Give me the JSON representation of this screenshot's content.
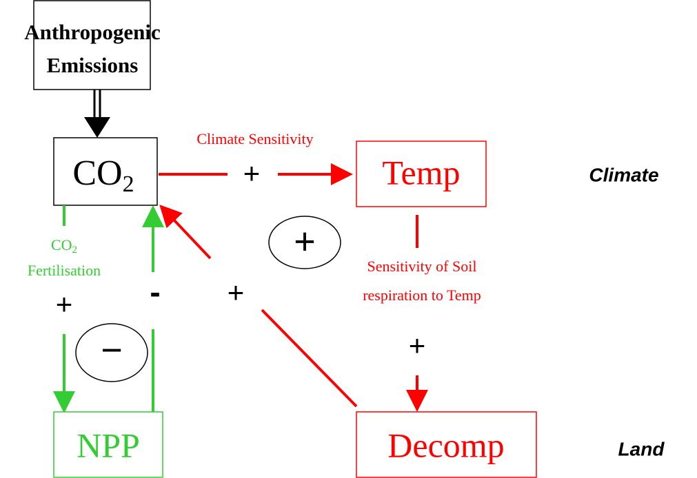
{
  "nodes": {
    "emissions": {
      "lines": [
        "Anthropogenic",
        "Emissions"
      ]
    },
    "co2": {
      "label": "CO",
      "sub": "2"
    },
    "temp": {
      "label": "Temp"
    },
    "npp": {
      "label": "NPP"
    },
    "decomp": {
      "label": "Decomp"
    }
  },
  "links": {
    "climate_sensitivity": {
      "label": "Climate Sensitivity",
      "sign": "+"
    },
    "soil_respiration": {
      "lines": [
        "Sensitivity of Soil",
        "respiration to Temp"
      ],
      "sign": "+"
    },
    "fertilisation": {
      "label": "CO",
      "sub": "2",
      "label2": "Fertilisation",
      "sign": "+"
    },
    "npp_uptake": {
      "sign": "-"
    },
    "decomp_release": {
      "sign": "+"
    }
  },
  "loops": {
    "positive": "+",
    "negative": "−"
  },
  "regions": {
    "climate": "Climate",
    "land": "Land"
  }
}
